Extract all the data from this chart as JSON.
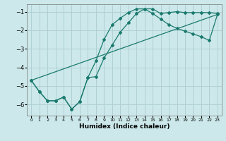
{
  "xlabel": "Humidex (Indice chaleur)",
  "xlim": [
    -0.5,
    23.5
  ],
  "ylim": [
    -6.6,
    -0.6
  ],
  "yticks": [
    -6,
    -5,
    -4,
    -3,
    -2,
    -1
  ],
  "xticks": [
    0,
    1,
    2,
    3,
    4,
    5,
    6,
    7,
    8,
    9,
    10,
    11,
    12,
    13,
    14,
    15,
    16,
    17,
    18,
    19,
    20,
    21,
    22,
    23
  ],
  "bg_color": "#cce8ea",
  "grid_color": "#b0d0d4",
  "line_color": "#1a7a6e",
  "line1_x": [
    0,
    1,
    2,
    3,
    4,
    5,
    6,
    7,
    8,
    9,
    10,
    11,
    12,
    13,
    14,
    15,
    16,
    17,
    18,
    19,
    20,
    21,
    22,
    23
  ],
  "line1_y": [
    -4.7,
    -5.3,
    -5.8,
    -5.8,
    -5.6,
    -6.25,
    -5.85,
    -4.55,
    -4.5,
    -3.5,
    -2.8,
    -2.1,
    -1.6,
    -1.1,
    -0.85,
    -0.85,
    -1.1,
    -1.05,
    -1.0,
    -1.05,
    -1.05,
    -1.05,
    -1.05,
    -1.1
  ],
  "line2_x": [
    0,
    1,
    2,
    3,
    4,
    5,
    6,
    7,
    8,
    9,
    10,
    11,
    12,
    13,
    14,
    15,
    16,
    17,
    18,
    19,
    20,
    21,
    22,
    23
  ],
  "line2_y": [
    -4.7,
    -5.3,
    -5.8,
    -5.8,
    -5.6,
    -6.25,
    -5.85,
    -4.55,
    -3.65,
    -2.5,
    -1.7,
    -1.35,
    -1.05,
    -0.85,
    -0.85,
    -1.1,
    -1.4,
    -1.7,
    -1.9,
    -2.05,
    -2.2,
    -2.35,
    -2.55,
    -1.15
  ],
  "line3_x": [
    0,
    23
  ],
  "line3_y": [
    -4.7,
    -1.15
  ]
}
